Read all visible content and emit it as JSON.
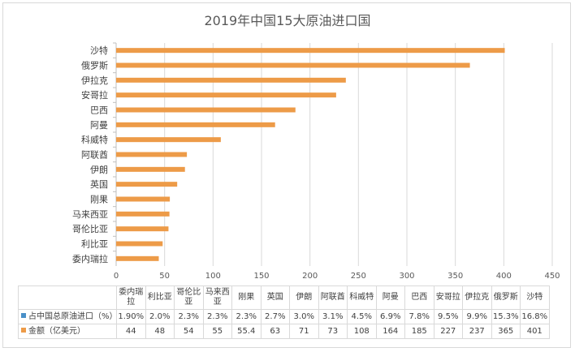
{
  "chart_data": {
    "type": "bar",
    "orientation": "horizontal",
    "title": "2019年中国15大原油进口国",
    "categories": [
      "委内瑞拉",
      "利比亚",
      "哥伦比亚",
      "马来西亚",
      "刚果",
      "英国",
      "伊朗",
      "阿联酋",
      "科威特",
      "阿曼",
      "巴西",
      "安哥拉",
      "伊拉克",
      "俄罗斯",
      "沙特"
    ],
    "series": [
      {
        "name": "占中国总原油进口（%）",
        "color": "#4a90c8",
        "values": [
          "1.90%",
          "2.0%",
          "2.3%",
          "2.3%",
          "2.3%",
          "2.7%",
          "3.0%",
          "3.1%",
          "4.5%",
          "6.9%",
          "7.8%",
          "9.5%",
          "9.9%",
          "15.3%",
          "16.8%"
        ]
      },
      {
        "name": "金额（亿美元）",
        "color": "#ed9b48",
        "values": [
          44,
          48,
          54,
          55,
          "55.4",
          63,
          71,
          73,
          108,
          164,
          185,
          227,
          237,
          365,
          401
        ]
      }
    ],
    "xlim": [
      0,
      450
    ],
    "xticks": [
      0,
      50,
      100,
      150,
      200,
      250,
      300,
      350,
      400,
      450
    ],
    "grid": "vertical",
    "data_table": true
  }
}
